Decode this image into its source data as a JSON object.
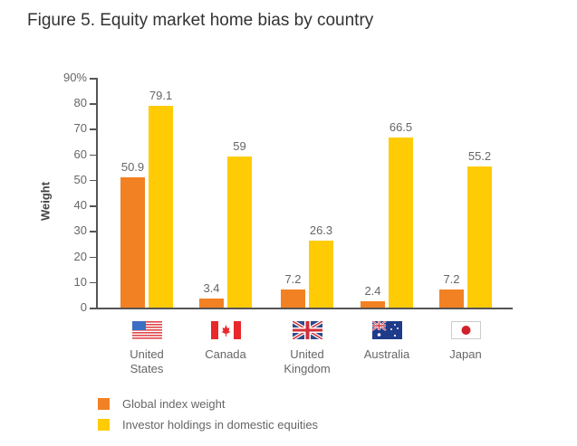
{
  "title": "Figure 5. Equity market home bias by country",
  "colors": {
    "global": "#F28123",
    "domestic": "#FFCB05"
  },
  "chart_data": {
    "type": "bar",
    "title": "Figure 5. Equity market home bias by country",
    "xlabel": "",
    "ylabel": "Weight",
    "ylim": [
      0,
      90
    ],
    "yticks": [
      "0",
      "10",
      "20",
      "30",
      "40",
      "50",
      "60",
      "70",
      "80",
      "90%"
    ],
    "categories": [
      "United States",
      "Canada",
      "United Kingdom",
      "Australia",
      "Japan"
    ],
    "series": [
      {
        "name": "Global index weight",
        "values": [
          50.9,
          3.4,
          7.2,
          2.4,
          7.2
        ]
      },
      {
        "name": "Investor holdings in domestic equities",
        "values": [
          79.1,
          59,
          26.3,
          66.5,
          55.2
        ]
      }
    ],
    "value_labels": [
      [
        "50.9",
        "3.4",
        "7.2",
        "2.4",
        "7.2"
      ],
      [
        "79.1",
        "59",
        "26.3",
        "66.5",
        "55.2"
      ]
    ],
    "legend_position": "bottom-left",
    "grid": false
  },
  "category_lines": [
    [
      "United",
      "States"
    ],
    [
      "Canada",
      ""
    ],
    [
      "United",
      "Kingdom"
    ],
    [
      "Australia",
      ""
    ],
    [
      "Japan",
      ""
    ]
  ],
  "flags": [
    "us-flag-icon",
    "canada-flag-icon",
    "uk-flag-icon",
    "australia-flag-icon",
    "japan-flag-icon"
  ],
  "legend": [
    "Global index weight",
    "Investor holdings in domestic equities"
  ]
}
